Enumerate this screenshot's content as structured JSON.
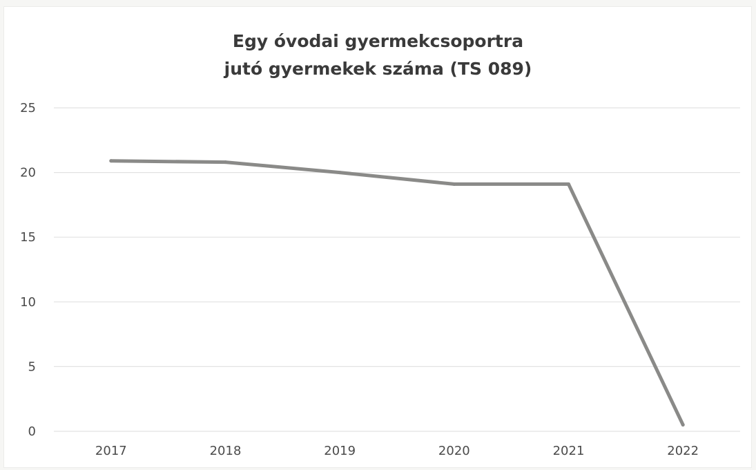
{
  "chart_data": {
    "type": "line",
    "title": [
      "Egy óvodai gyermekcsoportra",
      "jutó gyermekek száma (TS 089)"
    ],
    "xlabel": "",
    "ylabel": "",
    "categories": [
      "2017",
      "2018",
      "2019",
      "2020",
      "2021",
      "2022"
    ],
    "series": [
      {
        "values": [
          20.9,
          20.8,
          20.0,
          19.1,
          19.1,
          0.5
        ]
      }
    ],
    "ylim": [
      0,
      25
    ],
    "yticks": [
      "0",
      "5",
      "10",
      "15",
      "20",
      "25"
    ],
    "grid": true,
    "legend": "none",
    "line_color": "#8a8a88",
    "grid_color": "#e2e2e2"
  }
}
